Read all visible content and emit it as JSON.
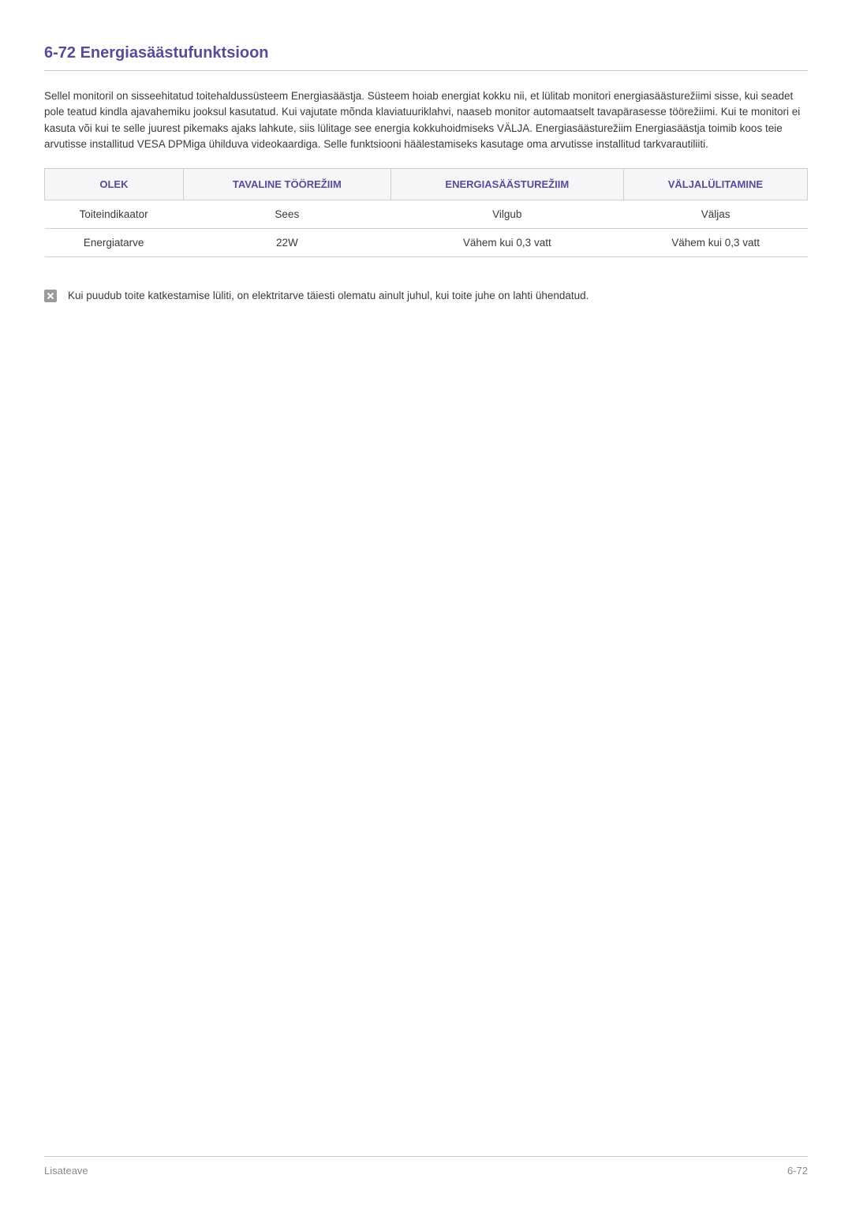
{
  "heading": "6-72  Energiasäästufunktsioon",
  "paragraph": "Sellel monitoril on sisseehitatud toitehaldussüsteem Energiasäästja. Süsteem hoiab energiat kokku nii, et lülitab monitori energiasäästurežiimi sisse, kui seadet pole teatud kindla ajavahemiku jooksul kasutatud. Kui vajutate mõnda klaviatuuriklahvi, naaseb monitor automaatselt tavapärasesse töörežiimi. Kui te monitori ei kasuta või kui te selle juurest pikemaks ajaks lahkute, siis lülitage see energia kokkuhoidmiseks VÄLJA. Energiasäästurežiim Energiasäästja toimib koos teie arvutisse installitud VESA DPMiga ühilduva videokaardiga. Selle funktsiooni häälestamiseks kasutage oma arvutisse installitud tarkvarautiliiti.",
  "table": {
    "headers": [
      "OLEK",
      "TAVALINE TÖÖREŽIIM",
      "ENERGIASÄÄSTUREŽIIM",
      "VÄLJALÜLITAMINE"
    ],
    "rows": [
      [
        "Toiteindikaator",
        "Sees",
        "Vilgub",
        "Väljas"
      ],
      [
        "Energiatarve",
        "22W",
        "Vähem kui 0,3 vatt",
        "Vähem kui 0,3 vatt"
      ]
    ],
    "header_bg": "#f6f6f8",
    "header_color": "#5a4a9a",
    "border_color": "#d0d0d0",
    "cell_color": "#3a3a3a"
  },
  "note": "Kui puudub toite katkestamise lüliti, on elektritarve täiesti olematu ainult juhul, kui toite juhe on lahti ühendatud.",
  "footer": {
    "left": "Lisateave",
    "right": "6-72"
  },
  "colors": {
    "heading": "#5a4a9a",
    "body": "#3a3a3a",
    "rule": "#c8c8c8",
    "footer_text": "#8a8a8a",
    "note_icon_bg": "#9a9a9a"
  }
}
